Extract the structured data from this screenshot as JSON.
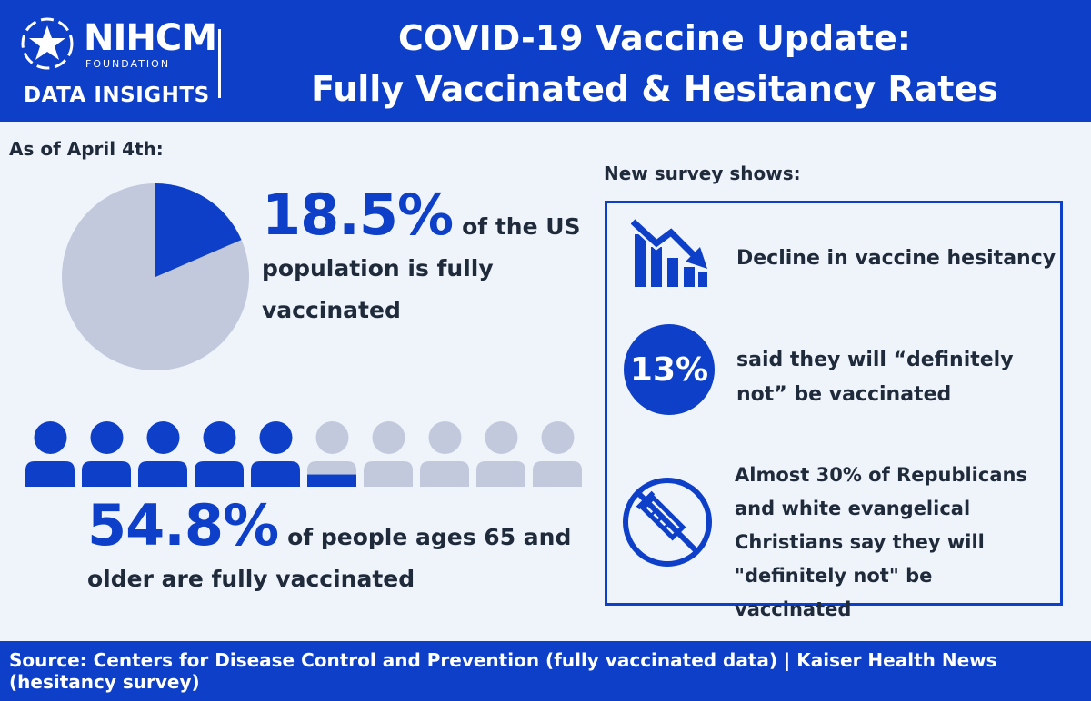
{
  "colors": {
    "brand_blue": "#0d3fc8",
    "muted": "#c2c9dc",
    "background": "#eff4fb",
    "text": "#1f2a3a"
  },
  "header": {
    "logo_name": "NIHCM",
    "logo_sub": "FOUNDATION",
    "logo_tagline": "DATA INSIGHTS",
    "title_line1": "COVID-19 Vaccine Update:",
    "title_line2": "Fully Vaccinated & Hesitancy Rates"
  },
  "left": {
    "as_of": "As of April 4th:",
    "stat1": {
      "value": "18.5%",
      "text": "of the US population is fully vaccinated",
      "fraction": 0.185
    },
    "stat2": {
      "value": "54.8%",
      "text": "of people ages 65 and older are fully vaccinated",
      "people_total": 10,
      "people_filled": 5.48
    }
  },
  "right": {
    "label": "New survey shows:",
    "items": [
      {
        "icon": "declining-bar-chart-icon",
        "text": "Decline in vaccine hesitancy"
      },
      {
        "badge": "13%",
        "text": "said they will “definitely not” be vaccinated"
      },
      {
        "icon": "no-syringe-icon",
        "text": "Almost 30% of Republicans and white evangelical Christians say they will \"definitely not\" be vaccinated"
      }
    ]
  },
  "footer": {
    "source": "Source: Centers for Disease Control and Prevention (fully vaccinated data) | Kaiser Health News (hesitancy survey)"
  }
}
